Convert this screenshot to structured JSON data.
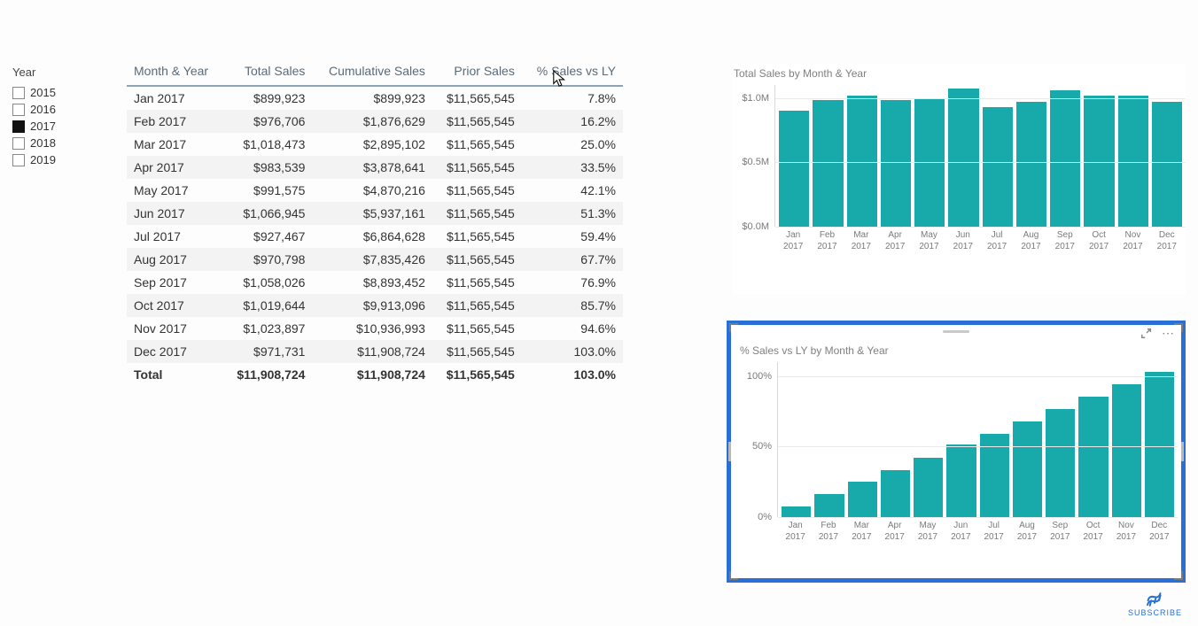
{
  "slicer": {
    "title": "Year",
    "items": [
      {
        "label": "2015",
        "checked": false
      },
      {
        "label": "2016",
        "checked": false
      },
      {
        "label": "2017",
        "checked": true
      },
      {
        "label": "2018",
        "checked": false
      },
      {
        "label": "2019",
        "checked": false
      }
    ]
  },
  "table": {
    "columns": [
      "Month & Year",
      "Total Sales",
      "Cumulative Sales",
      "Prior Sales",
      "% Sales vs LY"
    ],
    "align": [
      "left",
      "right",
      "right",
      "right",
      "right"
    ],
    "rows": [
      [
        "Jan 2017",
        "$899,923",
        "$899,923",
        "$11,565,545",
        "7.8%"
      ],
      [
        "Feb 2017",
        "$976,706",
        "$1,876,629",
        "$11,565,545",
        "16.2%"
      ],
      [
        "Mar 2017",
        "$1,018,473",
        "$2,895,102",
        "$11,565,545",
        "25.0%"
      ],
      [
        "Apr 2017",
        "$983,539",
        "$3,878,641",
        "$11,565,545",
        "33.5%"
      ],
      [
        "May 2017",
        "$991,575",
        "$4,870,216",
        "$11,565,545",
        "42.1%"
      ],
      [
        "Jun 2017",
        "$1,066,945",
        "$5,937,161",
        "$11,565,545",
        "51.3%"
      ],
      [
        "Jul 2017",
        "$927,467",
        "$6,864,628",
        "$11,565,545",
        "59.4%"
      ],
      [
        "Aug 2017",
        "$970,798",
        "$7,835,426",
        "$11,565,545",
        "67.7%"
      ],
      [
        "Sep 2017",
        "$1,058,026",
        "$8,893,452",
        "$11,565,545",
        "76.9%"
      ],
      [
        "Oct 2017",
        "$1,019,644",
        "$9,913,096",
        "$11,565,545",
        "85.7%"
      ],
      [
        "Nov 2017",
        "$1,023,897",
        "$10,936,993",
        "$11,565,545",
        "94.6%"
      ],
      [
        "Dec 2017",
        "$971,731",
        "$11,908,724",
        "$11,565,545",
        "103.0%"
      ]
    ],
    "total": [
      "Total",
      "$11,908,724",
      "$11,908,724",
      "$11,565,545",
      "103.0%"
    ],
    "header_color": "#5a6a78",
    "header_border": "#8aa5b8",
    "row_stripe_bg": "#f3f3f3",
    "font_size": 14
  },
  "chart_top": {
    "type": "bar",
    "title": "Total Sales by Month & Year",
    "categories": [
      "Jan\n2017",
      "Feb\n2017",
      "Mar\n2017",
      "Apr\n2017",
      "May\n2017",
      "Jun\n2017",
      "Jul\n2017",
      "Aug\n2017",
      "Sep\n2017",
      "Oct\n2017",
      "Nov\n2017",
      "Dec\n2017"
    ],
    "values": [
      0.9,
      0.98,
      1.02,
      0.98,
      0.99,
      1.07,
      0.93,
      0.97,
      1.06,
      1.02,
      1.02,
      0.97
    ],
    "ymax": 1.1,
    "yticks": [
      {
        "pos": 1.0,
        "label": "$1.0M"
      },
      {
        "pos": 0.5,
        "label": "$0.5M"
      },
      {
        "pos": 0.0,
        "label": "$0.0M"
      }
    ],
    "bar_color": "#18a9ab",
    "grid_color": "#eaeaea",
    "title_color": "#808080"
  },
  "chart_bottom": {
    "type": "bar",
    "title": "% Sales vs LY by Month & Year",
    "categories": [
      "Jan\n2017",
      "Feb\n2017",
      "Mar\n2017",
      "Apr\n2017",
      "May\n2017",
      "Jun\n2017",
      "Jul\n2017",
      "Aug\n2017",
      "Sep\n2017",
      "Oct\n2017",
      "Nov\n2017",
      "Dec\n2017"
    ],
    "values": [
      7.8,
      16.2,
      25.0,
      33.5,
      42.1,
      51.3,
      59.4,
      67.7,
      76.9,
      85.7,
      94.6,
      103.0
    ],
    "ymax": 110,
    "yticks": [
      {
        "pos": 100,
        "label": "100%"
      },
      {
        "pos": 50,
        "label": "50%"
      },
      {
        "pos": 0,
        "label": "0%"
      }
    ],
    "bar_color": "#18a9ab",
    "grid_color": "#eaeaea",
    "title_color": "#808080",
    "selection_border": "#2a6fd6"
  },
  "subscribe": {
    "label": "SUBSCRIBE"
  }
}
